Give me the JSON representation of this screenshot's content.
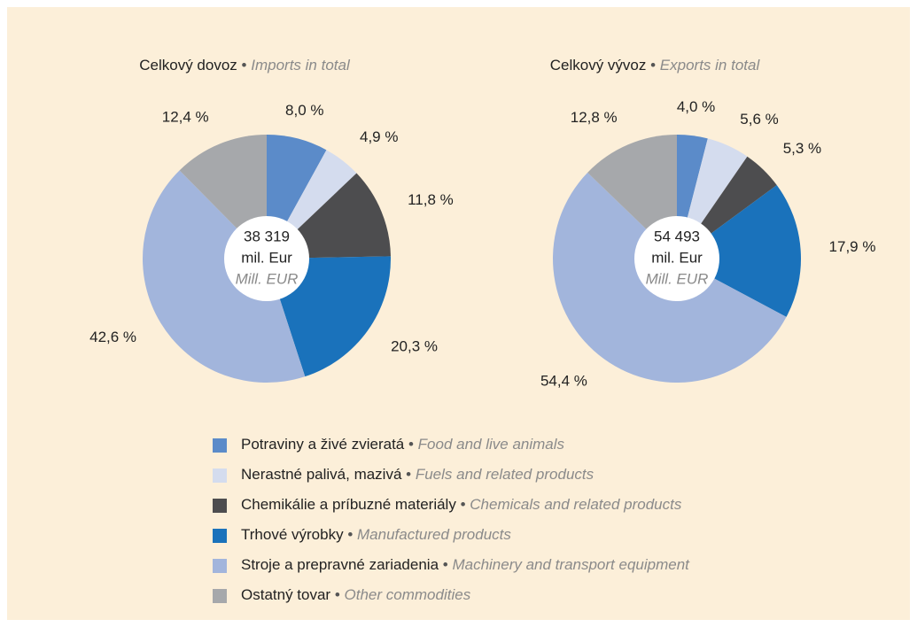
{
  "separator": "•",
  "legend": {
    "labels": [
      "Potraviny a živé zvieratá",
      "Nerastné palivá, mazivá",
      "Chemikálie a príbuzné materiály",
      "Trhové výrobky",
      "Stroje a prepravné zariadenia",
      "Ostatný tovar"
    ],
    "labels_en": [
      "Food and live animals",
      "Fuels and related products",
      "Chemicals and related products",
      "Manufactured products",
      "Machinery and transport equipment",
      "Other commodities"
    ]
  },
  "chart_data": [
    {
      "type": "pie",
      "title": "Celkový dovoz",
      "title_en": "Imports in total",
      "values": [
        8.0,
        4.9,
        11.8,
        20.3,
        42.6,
        12.4
      ],
      "value_labels": [
        "8,0 %",
        "4,9 %",
        "11,8 %",
        "20,3 %",
        "42,6 %",
        "12,4 %"
      ],
      "colors": [
        "#5b8bc9",
        "#d4dcee",
        "#4d4d4f",
        "#1a72bb",
        "#a2b5dc",
        "#a6a8ab"
      ],
      "center_lines": [
        "38 319",
        "mil. Eur",
        "Mill. EUR"
      ]
    },
    {
      "type": "pie",
      "title": "Celkový vývoz",
      "title_en": "Exports in total",
      "values": [
        4.0,
        5.6,
        5.3,
        17.9,
        54.4,
        12.8
      ],
      "value_labels": [
        "4,0 %",
        "5,6 %",
        "5,3 %",
        "17,9 %",
        "54,4 %",
        "12,8 %"
      ],
      "colors": [
        "#5b8bc9",
        "#d4dcee",
        "#4d4d4f",
        "#1a72bb",
        "#a2b5dc",
        "#a6a8ab"
      ],
      "center_lines": [
        "54 493",
        "mil. Eur",
        "Mill. EUR"
      ]
    }
  ]
}
